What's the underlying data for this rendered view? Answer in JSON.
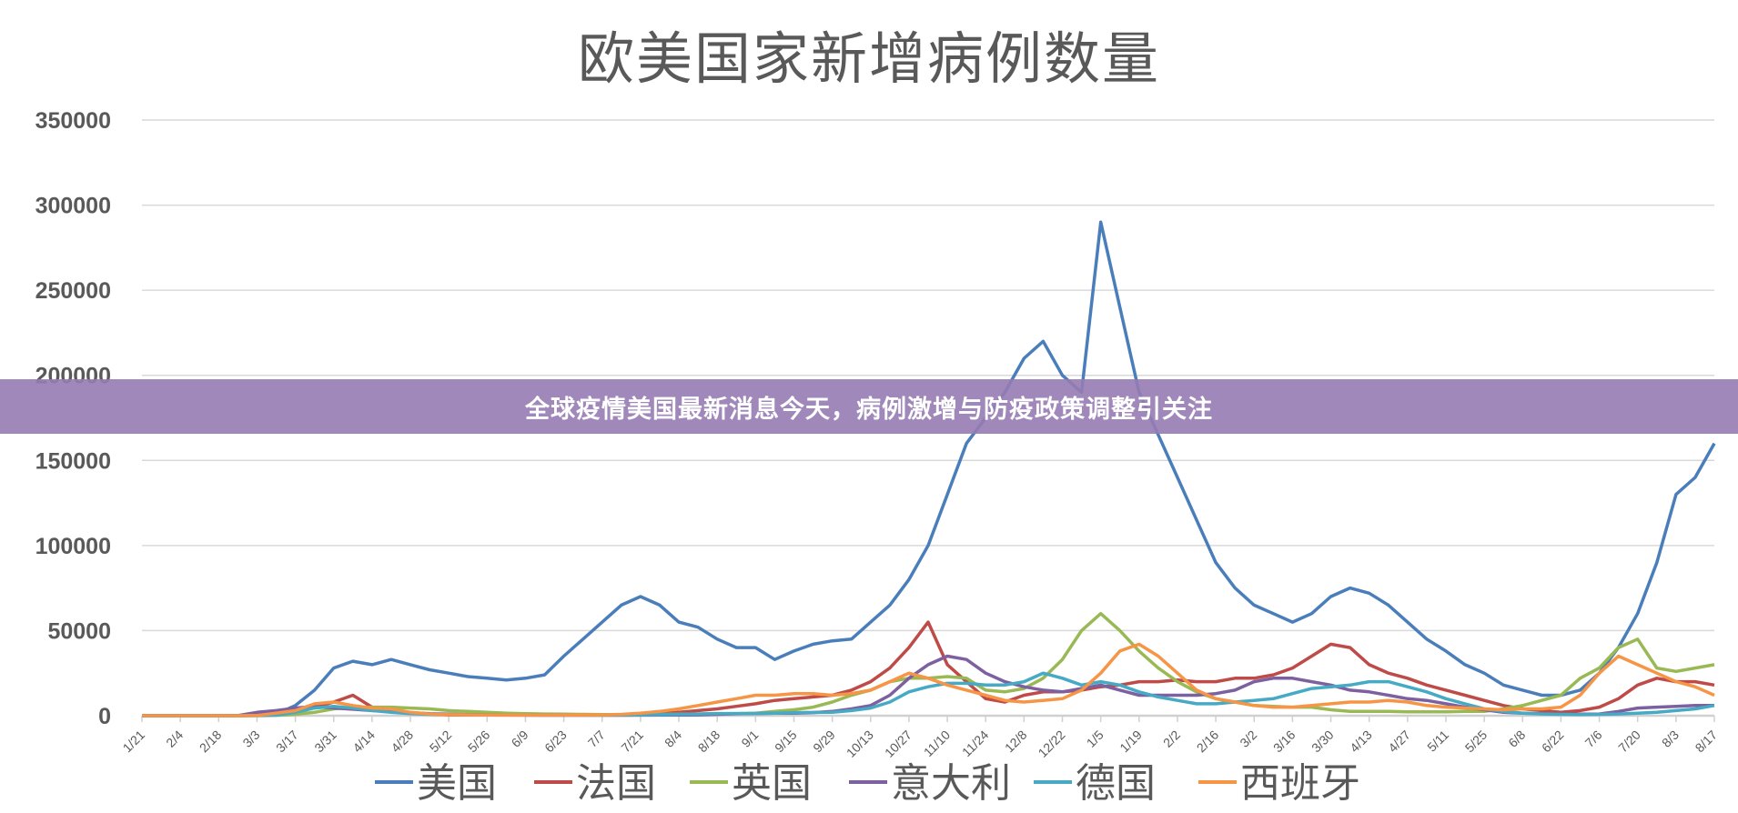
{
  "banner": {
    "text": "全球疫情美国最新消息今天，病例激增与防疫政策调整引关注"
  },
  "chart_data": {
    "type": "line",
    "title": "欧美国家新增病例数量",
    "xlabel": "",
    "ylabel": "",
    "ylim": [
      0,
      350000
    ],
    "y_ticks": [
      "0",
      "50000",
      "100000",
      "150000",
      "200000",
      "250000",
      "300000",
      "350000"
    ],
    "x_ticks": [
      "1/21",
      "2/4",
      "2/18",
      "3/3",
      "3/17",
      "3/31",
      "4/14",
      "4/28",
      "5/12",
      "5/26",
      "6/9",
      "6/23",
      "7/7",
      "7/21",
      "8/4",
      "8/18",
      "9/1",
      "9/15",
      "9/29",
      "10/13",
      "10/27",
      "11/10",
      "11/24",
      "12/8",
      "12/22",
      "1/5",
      "1/19",
      "2/2",
      "2/16",
      "3/2",
      "3/16",
      "3/30",
      "4/13",
      "4/27",
      "5/11",
      "5/25",
      "6/8",
      "6/22",
      "7/6",
      "7/20",
      "8/3",
      "8/17"
    ],
    "grid": true,
    "legend_position": "bottom",
    "x": [
      "1/21",
      "1/28",
      "2/4",
      "2/11",
      "2/18",
      "2/25",
      "3/3",
      "3/10",
      "3/17",
      "3/24",
      "3/31",
      "4/7",
      "4/14",
      "4/21",
      "4/28",
      "5/5",
      "5/12",
      "5/19",
      "5/26",
      "6/2",
      "6/9",
      "6/16",
      "6/23",
      "6/30",
      "7/7",
      "7/14",
      "7/21",
      "7/28",
      "8/4",
      "8/11",
      "8/18",
      "8/25",
      "9/1",
      "9/8",
      "9/15",
      "9/22",
      "9/29",
      "10/6",
      "10/13",
      "10/20",
      "10/27",
      "11/3",
      "11/10",
      "11/17",
      "11/24",
      "12/1",
      "12/8",
      "12/15",
      "12/22",
      "12/29",
      "1/5",
      "1/12",
      "1/19",
      "1/26",
      "2/2",
      "2/9",
      "2/16",
      "2/23",
      "3/2",
      "3/9",
      "3/16",
      "3/23",
      "3/30",
      "4/6",
      "4/13",
      "4/20",
      "4/27",
      "5/4",
      "5/11",
      "5/18",
      "5/25",
      "6/1",
      "6/8",
      "6/15",
      "6/22",
      "6/29",
      "7/6",
      "7/13",
      "7/20",
      "7/27",
      "8/3",
      "8/10",
      "8/17"
    ],
    "series": [
      {
        "name": "美国",
        "color": "#4a7ebb",
        "values": [
          0,
          0,
          0,
          0,
          0,
          0,
          200,
          1000,
          6000,
          15000,
          28000,
          32000,
          30000,
          33000,
          30000,
          27000,
          25000,
          23000,
          22000,
          21000,
          22000,
          24000,
          35000,
          45000,
          55000,
          65000,
          70000,
          65000,
          55000,
          52000,
          45000,
          40000,
          40000,
          33000,
          38000,
          42000,
          44000,
          45000,
          55000,
          65000,
          80000,
          100000,
          130000,
          160000,
          175000,
          190000,
          210000,
          220000,
          200000,
          190000,
          290000,
          240000,
          190000,
          165000,
          140000,
          115000,
          90000,
          75000,
          65000,
          60000,
          55000,
          60000,
          70000,
          75000,
          72000,
          65000,
          55000,
          45000,
          38000,
          30000,
          25000,
          18000,
          15000,
          12000,
          12000,
          15000,
          25000,
          40000,
          60000,
          90000,
          130000,
          140000,
          160000
        ]
      },
      {
        "name": "法国",
        "color": "#be4b48",
        "values": [
          0,
          0,
          0,
          0,
          0,
          0,
          100,
          500,
          3000,
          5000,
          8000,
          12000,
          5000,
          3000,
          1500,
          1000,
          500,
          500,
          500,
          500,
          500,
          500,
          500,
          500,
          500,
          500,
          800,
          1200,
          2000,
          3000,
          4000,
          5500,
          7000,
          9000,
          10000,
          11000,
          12000,
          15000,
          20000,
          28000,
          40000,
          55000,
          30000,
          20000,
          10000,
          8000,
          12000,
          14000,
          14000,
          15000,
          17000,
          18000,
          20000,
          20000,
          21000,
          20000,
          20000,
          22000,
          22000,
          24000,
          28000,
          35000,
          42000,
          40000,
          30000,
          25000,
          22000,
          18000,
          15000,
          12000,
          9000,
          6000,
          4000,
          3000,
          2000,
          3000,
          5000,
          10000,
          18000,
          22000,
          20000,
          20000,
          18000
        ]
      },
      {
        "name": "英国",
        "color": "#98b954",
        "values": [
          0,
          0,
          0,
          0,
          0,
          0,
          0,
          200,
          800,
          2000,
          4000,
          5000,
          5000,
          5000,
          4500,
          4000,
          3000,
          2500,
          2000,
          1500,
          1200,
          1000,
          900,
          800,
          700,
          700,
          700,
          800,
          900,
          1000,
          1100,
          1300,
          1500,
          2500,
          3500,
          5000,
          8000,
          12000,
          15000,
          20000,
          22000,
          22000,
          23000,
          22000,
          15000,
          14000,
          16000,
          22000,
          33000,
          50000,
          60000,
          50000,
          38000,
          28000,
          20000,
          14000,
          10000,
          8000,
          6000,
          5500,
          5000,
          5000,
          3500,
          2500,
          2500,
          2500,
          2300,
          2300,
          2300,
          2500,
          2500,
          4000,
          6000,
          9000,
          12000,
          22000,
          28000,
          40000,
          45000,
          28000,
          26000,
          28000,
          30000
        ]
      },
      {
        "name": "意大利",
        "color": "#7d60a0",
        "values": [
          0,
          0,
          0,
          0,
          0,
          100,
          2000,
          3000,
          4500,
          5500,
          4500,
          3800,
          3000,
          2500,
          1800,
          1200,
          900,
          700,
          500,
          400,
          300,
          250,
          250,
          250,
          250,
          250,
          300,
          350,
          400,
          500,
          800,
          1100,
          1300,
          1500,
          1500,
          1800,
          2500,
          4000,
          6000,
          12000,
          22000,
          30000,
          35000,
          33000,
          25000,
          20000,
          17000,
          15000,
          14000,
          16000,
          18000,
          15000,
          12000,
          12000,
          12000,
          12000,
          13000,
          15000,
          20000,
          22000,
          22000,
          20000,
          18000,
          15000,
          14000,
          12000,
          10000,
          9000,
          7000,
          5000,
          3500,
          2000,
          1500,
          1200,
          900,
          900,
          1000,
          2500,
          4500,
          5000,
          5500,
          6000,
          6000
        ]
      },
      {
        "name": "德国",
        "color": "#46aac5",
        "values": [
          0,
          0,
          0,
          0,
          0,
          0,
          50,
          300,
          2000,
          4500,
          5500,
          4500,
          3000,
          2000,
          1200,
          800,
          700,
          600,
          500,
          400,
          400,
          500,
          500,
          400,
          400,
          400,
          500,
          700,
          800,
          1000,
          1300,
          1300,
          1300,
          1500,
          1800,
          1900,
          2000,
          3000,
          4500,
          8000,
          14000,
          17000,
          19000,
          19000,
          18000,
          18000,
          20000,
          25000,
          22000,
          18000,
          20000,
          18000,
          14000,
          11000,
          9000,
          7000,
          7000,
          8000,
          9000,
          10000,
          13000,
          16000,
          17000,
          18000,
          20000,
          20000,
          17000,
          14000,
          10000,
          7000,
          4000,
          2500,
          1500,
          1000,
          800,
          700,
          800,
          1000,
          1500,
          2000,
          3000,
          4000,
          6000
        ]
      },
      {
        "name": "西班牙",
        "color": "#f69546",
        "values": [
          0,
          0,
          0,
          0,
          0,
          0,
          100,
          1500,
          3000,
          7000,
          8000,
          6000,
          4500,
          4000,
          2000,
          1000,
          600,
          500,
          400,
          300,
          300,
          300,
          400,
          400,
          500,
          800,
          1500,
          2500,
          4000,
          6000,
          8000,
          10000,
          12000,
          12000,
          13000,
          13000,
          12000,
          13000,
          15000,
          20000,
          25000,
          22000,
          18000,
          15000,
          12000,
          9000,
          8000,
          9000,
          10000,
          15000,
          25000,
          38000,
          42000,
          35000,
          25000,
          15000,
          10000,
          8000,
          6000,
          5000,
          5000,
          6000,
          7000,
          8000,
          8000,
          9000,
          8000,
          6000,
          5000,
          4500,
          4000,
          3500,
          4000,
          4000,
          5000,
          12000,
          25000,
          35000,
          30000,
          25000,
          20000,
          17000,
          12000
        ]
      }
    ]
  }
}
